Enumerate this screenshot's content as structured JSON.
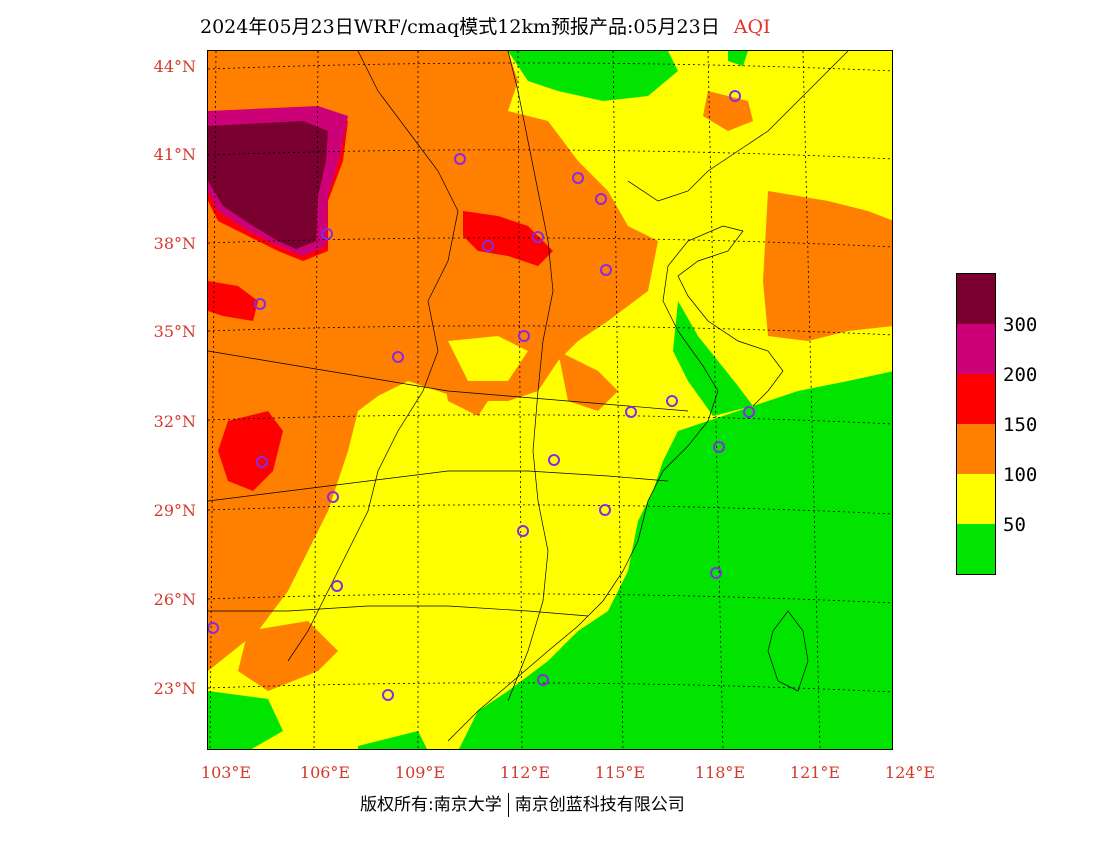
{
  "title": {
    "main": "2024年05月23日WRF/cmaq模式12km预报产品:05月23日",
    "variable": "AQI"
  },
  "axes": {
    "lat_labels": [
      "44°N",
      "41°N",
      "38°N",
      "35°N",
      "32°N",
      "29°N",
      "26°N",
      "23°N"
    ],
    "lon_labels": [
      "103°E",
      "106°E",
      "109°E",
      "112°E",
      "115°E",
      "118°E",
      "121°E",
      "124°E"
    ]
  },
  "legend": {
    "labels": [
      "300",
      "200",
      "150",
      "100",
      "50"
    ],
    "colors": [
      "#7a0030",
      "#cc0077",
      "#ff0000",
      "#ff7f00",
      "#ffff00",
      "#00e400"
    ]
  },
  "footer": {
    "copyright": "版权所有:南京大学",
    "company": "南京创蓝科技有限公司"
  },
  "colors": {
    "label_red": "#d33a2c",
    "station_marker": "#8a2be2"
  }
}
